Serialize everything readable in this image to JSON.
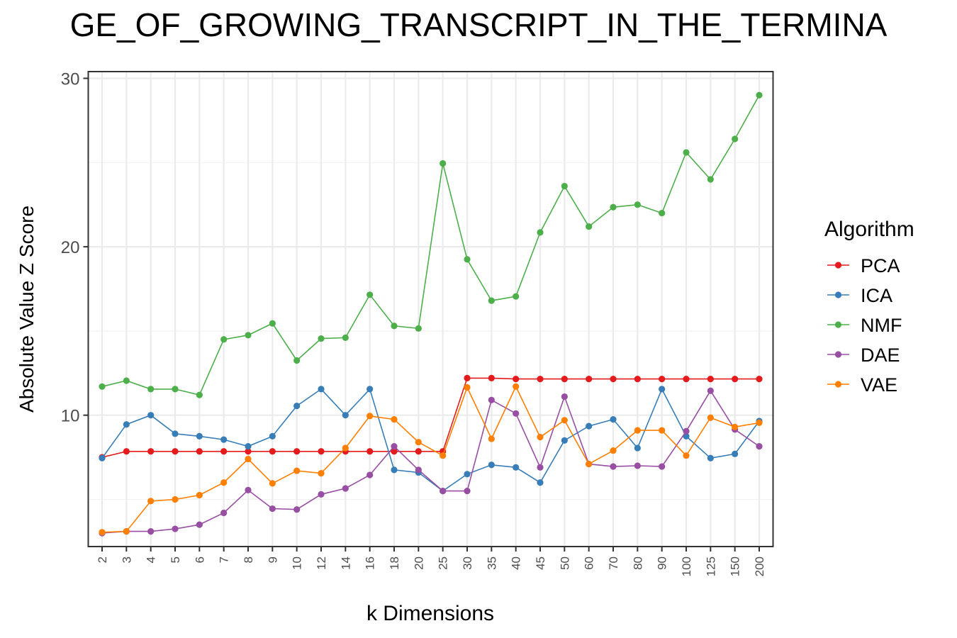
{
  "chart_data": {
    "type": "line",
    "title": "GE_OF_GROWING_TRANSCRIPT_IN_THE_TERMINA",
    "xlabel": "k Dimensions",
    "ylabel": "Absolute Value Z Score",
    "categories": [
      "2",
      "3",
      "4",
      "5",
      "6",
      "7",
      "8",
      "9",
      "10",
      "12",
      "14",
      "16",
      "18",
      "20",
      "25",
      "30",
      "35",
      "40",
      "45",
      "50",
      "60",
      "70",
      "80",
      "90",
      "100",
      "125",
      "150",
      "200"
    ],
    "y_ticks": [
      10,
      20,
      30
    ],
    "ylim": [
      2.2,
      30.4
    ],
    "grid": true,
    "legend": {
      "title": "Algorithm",
      "position": "right"
    },
    "series": [
      {
        "name": "PCA",
        "color": "#E41A1C",
        "values": [
          7.5,
          7.85,
          7.85,
          7.85,
          7.85,
          7.85,
          7.85,
          7.85,
          7.85,
          7.85,
          7.85,
          7.85,
          7.85,
          7.85,
          7.85,
          12.2,
          12.2,
          12.15,
          12.15,
          12.15,
          12.15,
          12.15,
          12.15,
          12.15,
          12.15,
          12.15,
          12.15,
          12.15
        ]
      },
      {
        "name": "ICA",
        "color": "#377EB8",
        "values": [
          7.45,
          9.45,
          10.0,
          8.9,
          8.75,
          8.55,
          8.15,
          8.75,
          10.55,
          11.55,
          10.0,
          11.55,
          6.75,
          6.6,
          5.5,
          6.5,
          7.05,
          6.9,
          6.0,
          8.5,
          9.35,
          9.75,
          8.05,
          11.55,
          8.75,
          7.45,
          7.7,
          9.65
        ]
      },
      {
        "name": "NMF",
        "color": "#4DAF4A",
        "values": [
          11.7,
          12.05,
          11.55,
          11.55,
          11.2,
          14.5,
          14.75,
          15.45,
          13.25,
          14.55,
          14.6,
          17.15,
          15.3,
          15.15,
          24.95,
          19.25,
          16.8,
          17.05,
          20.85,
          23.6,
          21.2,
          22.35,
          22.5,
          22.0,
          25.6,
          24.0,
          26.4,
          29.0
        ]
      },
      {
        "name": "DAE",
        "color": "#984EA3",
        "values": [
          3.0,
          3.1,
          3.1,
          3.25,
          3.5,
          4.2,
          5.55,
          4.45,
          4.4,
          5.3,
          5.65,
          6.45,
          8.15,
          6.75,
          5.5,
          5.5,
          10.9,
          10.1,
          6.9,
          11.1,
          7.1,
          6.95,
          7.0,
          6.95,
          9.05,
          11.45,
          9.15,
          8.15
        ]
      },
      {
        "name": "VAE",
        "color": "#FF7F00",
        "values": [
          3.05,
          3.1,
          4.9,
          5.0,
          5.25,
          6.0,
          7.4,
          5.95,
          6.7,
          6.55,
          8.05,
          9.95,
          9.75,
          8.4,
          7.6,
          11.65,
          8.6,
          11.7,
          8.7,
          9.7,
          7.1,
          7.9,
          9.1,
          9.1,
          7.6,
          9.85,
          9.3,
          9.55
        ]
      }
    ]
  }
}
